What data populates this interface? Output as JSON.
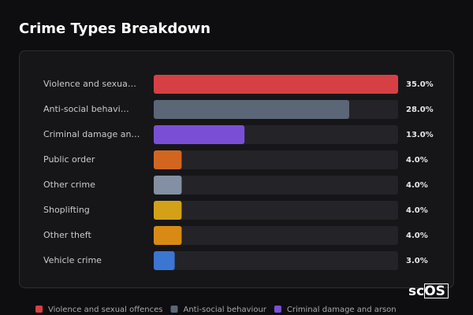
{
  "chart_data": {
    "type": "bar",
    "title": "Crime Types Breakdown",
    "categories": [
      "Violence and sexua…",
      "Anti-social behavi…",
      "Criminal damage an…",
      "Public order",
      "Other crime",
      "Shoplifting",
      "Other theft",
      "Vehicle crime"
    ],
    "values": [
      35,
      28,
      13,
      4,
      4,
      4,
      4,
      3
    ],
    "value_labels": [
      "35.0%",
      "28.0%",
      "13.0%",
      "4.0%",
      "4.0%",
      "4.0%",
      "4.0%",
      "3.0%"
    ],
    "colors": [
      "#d64045",
      "#5b6677",
      "#7a4fd6",
      "#d3661f",
      "#8390a3",
      "#d2a117",
      "#d98a15",
      "#3b76d3"
    ],
    "legend": [
      {
        "name": "Violence and sexual offences",
        "color": "#d64045"
      },
      {
        "name": "Anti-social behaviour",
        "color": "#5b6677"
      },
      {
        "name": "Criminal damage and arson",
        "color": "#7a4fd6"
      }
    ],
    "watermark": "scOS"
  }
}
